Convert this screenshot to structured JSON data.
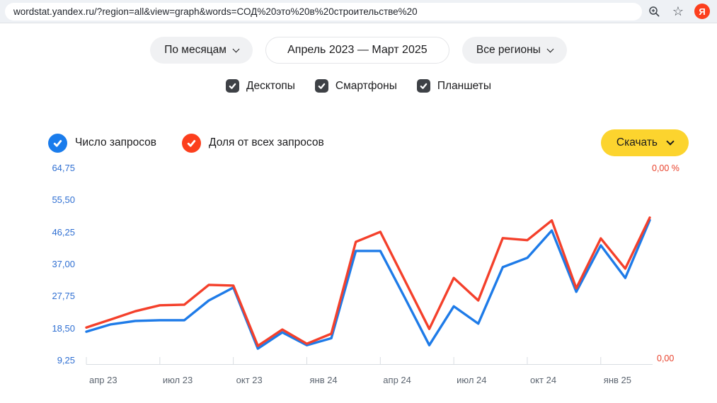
{
  "browser": {
    "url": "wordstat.yandex.ru/?region=all&view=graph&words=СОД%20это%20в%20строительстве%20",
    "zoom_icon": "magnifier-plus",
    "bookmark_icon": "star",
    "logo_letter": "Я"
  },
  "filters": {
    "group_by": "По месяцам",
    "date_range": "Апрель 2023 — Март 2025",
    "region": "Все регионы"
  },
  "device_filters": [
    {
      "label": "Десктопы",
      "checked": true
    },
    {
      "label": "Смартфоны",
      "checked": true
    },
    {
      "label": "Планшеты",
      "checked": true
    }
  ],
  "legend": [
    {
      "label": "Число запросов",
      "color": "#1a7cec",
      "checked": true
    },
    {
      "label": "Доля от всех запросов",
      "color": "#fc3f1d",
      "checked": true
    }
  ],
  "download_button": {
    "label": "Скачать"
  },
  "colors": {
    "line_blue": "#1e7be8",
    "line_red": "#f4402b",
    "button_yellow": "#fcd42e",
    "axis_gray": "#d9dde2",
    "left_axis_text": "#2f6fd2",
    "right_axis_text": "#e8402a"
  },
  "chart_data": {
    "type": "line",
    "x": [
      "апр 23",
      "май 23",
      "июн 23",
      "июл 23",
      "авг 23",
      "сен 23",
      "окт 23",
      "ноя 23",
      "дек 23",
      "янв 24",
      "фев 24",
      "мар 24",
      "апр 24",
      "май 24",
      "июн 24",
      "июл 24",
      "авг 24",
      "сен 24",
      "окт 24",
      "ноя 24",
      "дек 24",
      "янв 25",
      "фев 25",
      "мар 25"
    ],
    "x_tick_labels": [
      "апр 23",
      "июл 23",
      "окт 23",
      "янв 24",
      "апр 24",
      "июл 24",
      "окт 24",
      "янв 25"
    ],
    "left_axis": {
      "tick_labels": [
        "64,75",
        "55,50",
        "46,25",
        "37,00",
        "27,75",
        "18,50",
        "9,25"
      ],
      "min": 9.25,
      "max": 64.75
    },
    "right_axis": {
      "top_label": "0,00 %",
      "bottom_label": "0,00"
    },
    "series": [
      {
        "name": "Число запросов",
        "axis": "left",
        "color": "#1e7be8",
        "values": [
          17.6,
          19.7,
          20.7,
          20.9,
          20.9,
          26.6,
          30.3,
          12.7,
          17.4,
          13.7,
          15.7,
          40.9,
          40.9,
          27.4,
          13.7,
          24.9,
          19.9,
          36.2,
          38.9,
          46.8,
          29.1,
          42.5,
          33.1,
          49.8
        ]
      },
      {
        "name": "Доля от всех запросов",
        "axis": "right",
        "color": "#f4402b",
        "values": [
          18.8,
          21.1,
          23.5,
          25.2,
          25.4,
          31.1,
          30.9,
          13.5,
          18.2,
          14.1,
          17.0,
          43.5,
          46.4,
          32.4,
          18.4,
          33.1,
          26.6,
          44.6,
          44.0,
          49.7,
          30.1,
          44.5,
          35.8,
          50.5
        ]
      }
    ],
    "grid": false,
    "legend_position": "top-left",
    "title": ""
  }
}
